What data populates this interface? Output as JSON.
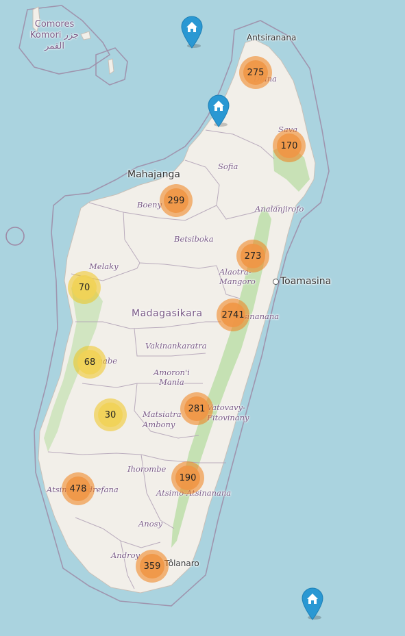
{
  "map": {
    "country_label": "Madagasikara",
    "colors": {
      "water": "#aad3df",
      "land": "#f2efe9",
      "forest": "#b6dca0",
      "border": "#9e8aa6",
      "cluster_large": "#f09a4c",
      "cluster_small": "#f1d357",
      "marker": "#2a98d3"
    },
    "comoros": {
      "line1": "Comores",
      "line2": "Komori",
      "line3": "جزر",
      "line4": "القمر"
    },
    "cities": {
      "antsiranana": "Antsiranana",
      "mahajanga": "Mahajanga",
      "toamasina": "Toamasina",
      "tolanaro": "Tôlanaro"
    },
    "regions": {
      "sava": "Sava",
      "sofia": "Sofia",
      "boeny": "Boeny",
      "analanjirofo": "Analanjirofo",
      "betsiboka": "Betsiboka",
      "melaky": "Melaky",
      "alaotra1": "Alaotra-",
      "alaotra2": "Mangoro",
      "atsinanana": "Atsinanana",
      "menabe": "Menabe",
      "vakinankaratra": "Vakinankaratra",
      "amoron1": "Amoron'i",
      "amoron2": "Mania",
      "matsiatra1": "Matsiatra",
      "matsiatra2": "Ambony",
      "vatovavy1": "Vatovavy-",
      "vatovavy2": "Fitovinany",
      "ihorombe": "Ihorombe",
      "atsimo_andrefana": "Atsimo-Andrefana",
      "atsimo_atsinanana": "Atsimo-Atsinanana",
      "anosy": "Anosy",
      "androy": "Androy",
      "diana": "Diana"
    },
    "clusters": [
      {
        "id": "diana",
        "count": "275",
        "size": "large"
      },
      {
        "id": "sava",
        "count": "170",
        "size": "large"
      },
      {
        "id": "boeny",
        "count": "299",
        "size": "large"
      },
      {
        "id": "alaotra",
        "count": "273",
        "size": "large"
      },
      {
        "id": "melaky",
        "count": "70",
        "size": "small"
      },
      {
        "id": "atsinanana",
        "count": "2741",
        "size": "large"
      },
      {
        "id": "menabe",
        "count": "68",
        "size": "small"
      },
      {
        "id": "matsiatra",
        "count": "30",
        "size": "small"
      },
      {
        "id": "vatovavy",
        "count": "281",
        "size": "large"
      },
      {
        "id": "atsimo-andrefana",
        "count": "478",
        "size": "large"
      },
      {
        "id": "atsimo-atsinanana",
        "count": "190",
        "size": "large"
      },
      {
        "id": "anosy",
        "count": "359",
        "size": "large"
      }
    ],
    "markers": [
      {
        "id": "north-sea",
        "icon": "home-icon"
      },
      {
        "id": "northwest-coast",
        "icon": "home-icon"
      },
      {
        "id": "southeast-sea",
        "icon": "home-icon"
      }
    ]
  }
}
